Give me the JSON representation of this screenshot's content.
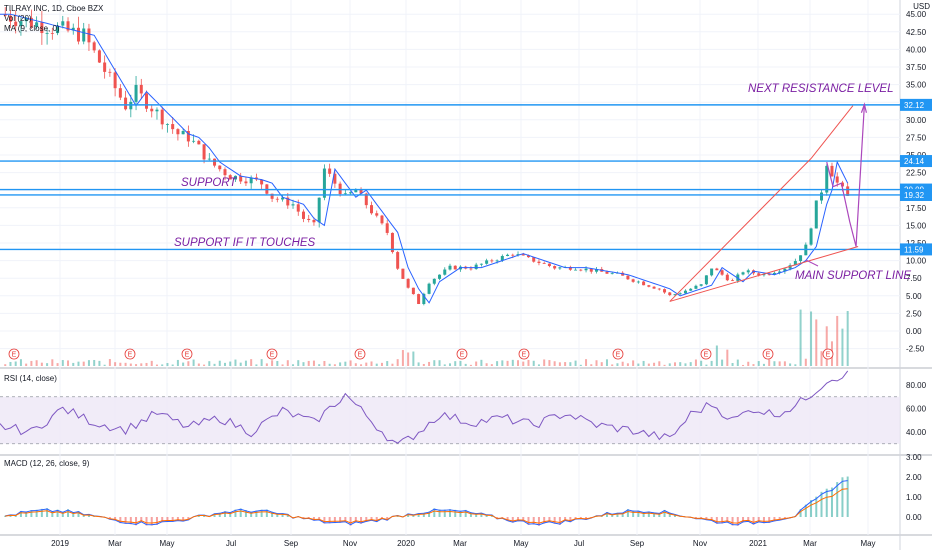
{
  "header": {
    "symbol": "TILRAY INC, 1D, Cboe BZX",
    "indicator_vol": "Vol (20)",
    "indicator_ma": "MA (9, close, 0)",
    "indicator_rsi": "RSI (14, close)",
    "indicator_macd": "MACD (12, 26, close, 9)",
    "currency": "USD"
  },
  "chart_data": {
    "type": "line",
    "price_axis": {
      "ticks": [
        "45.00",
        "42.50",
        "40.00",
        "37.50",
        "35.00",
        "32.50",
        "30.00",
        "27.50",
        "25.00",
        "22.50",
        "20.00",
        "17.50",
        "15.00",
        "12.50",
        "10.00",
        "7.50",
        "5.00",
        "2.50",
        "0.00",
        "-2.50"
      ],
      "range": [
        -2.5,
        45
      ]
    },
    "time_axis": {
      "labels": [
        "2019",
        "Mar",
        "May",
        "Jul",
        "Sep",
        "Nov",
        "2020",
        "Mar",
        "May",
        "Jul",
        "Sep",
        "Nov",
        "2021",
        "Mar",
        "May"
      ]
    },
    "price_series": [
      [
        0,
        45
      ],
      [
        8,
        42
      ],
      [
        10,
        37
      ],
      [
        12,
        32
      ],
      [
        13,
        34
      ],
      [
        15,
        31
      ],
      [
        17,
        28
      ],
      [
        18,
        27.5
      ],
      [
        19,
        26
      ],
      [
        20,
        24
      ],
      [
        22,
        22
      ],
      [
        24,
        21.5
      ],
      [
        25,
        21
      ],
      [
        26,
        19
      ],
      [
        27,
        18.5
      ],
      [
        28,
        18
      ],
      [
        29,
        16
      ],
      [
        30,
        15
      ],
      [
        31,
        23
      ],
      [
        32,
        21
      ],
      [
        33,
        19
      ],
      [
        34,
        20
      ],
      [
        35,
        18
      ],
      [
        36,
        16
      ],
      [
        37,
        14
      ],
      [
        38,
        9
      ],
      [
        39,
        6
      ],
      [
        40,
        4
      ],
      [
        41,
        7
      ],
      [
        42,
        8
      ],
      [
        43,
        9
      ],
      [
        45,
        9
      ],
      [
        47,
        10
      ],
      [
        49,
        11
      ],
      [
        51,
        10
      ],
      [
        53,
        9
      ],
      [
        55,
        9
      ],
      [
        57,
        8.5
      ],
      [
        59,
        8
      ],
      [
        61,
        7
      ],
      [
        63,
        6
      ],
      [
        64,
        5
      ],
      [
        65,
        5.5
      ],
      [
        67,
        6.5
      ],
      [
        68,
        9
      ],
      [
        69,
        8
      ],
      [
        70,
        7
      ],
      [
        71,
        8.5
      ],
      [
        73,
        8
      ],
      [
        75,
        9
      ],
      [
        76,
        10
      ],
      [
        77,
        12
      ],
      [
        78,
        18
      ],
      [
        78.5,
        20
      ],
      [
        79,
        24
      ],
      [
        80,
        21
      ],
      [
        81,
        19
      ]
    ],
    "rsi_axis": {
      "ticks": [
        "80.00",
        "60.00",
        "40.00"
      ],
      "range": [
        20,
        90
      ],
      "band": [
        30,
        70
      ]
    },
    "rsi_series": [
      [
        0,
        45
      ],
      [
        3,
        40
      ],
      [
        6,
        60
      ],
      [
        9,
        48
      ],
      [
        12,
        42
      ],
      [
        15,
        56
      ],
      [
        18,
        44
      ],
      [
        21,
        52
      ],
      [
        24,
        40
      ],
      [
        27,
        58
      ],
      [
        30,
        48
      ],
      [
        33,
        72
      ],
      [
        36,
        45
      ],
      [
        38,
        28
      ],
      [
        40,
        40
      ],
      [
        42,
        55
      ],
      [
        45,
        48
      ],
      [
        48,
        52
      ],
      [
        51,
        46
      ],
      [
        54,
        56
      ],
      [
        57,
        46
      ],
      [
        60,
        42
      ],
      [
        62,
        38
      ],
      [
        64,
        34
      ],
      [
        66,
        55
      ],
      [
        68,
        64
      ],
      [
        70,
        50
      ],
      [
        72,
        60
      ],
      [
        74,
        55
      ],
      [
        76,
        62
      ],
      [
        78,
        76
      ],
      [
        79,
        84
      ],
      [
        81,
        90
      ]
    ],
    "macd_axis": {
      "ticks": [
        "3.00",
        "2.00",
        "1.00",
        "0.00"
      ],
      "range": [
        -1.2,
        3
      ]
    },
    "annotations": {
      "next_resistance": "NEXT RESISTANCE LEVEL",
      "support": "SUPPORT",
      "support_if_touches": "SUPPORT IF IT TOUCHES",
      "main_support": "MAIN SUPPORT LINE"
    },
    "levels": [
      {
        "label": "32.12",
        "value": 32.12,
        "color": "#2196f3"
      },
      {
        "label": "24.14",
        "value": 24.14,
        "color": "#2196f3"
      },
      {
        "label": "20.09",
        "value": 20.09,
        "color": "#2196f3"
      },
      {
        "label": "19.32",
        "value": 19.32,
        "color": "#2196f3"
      },
      {
        "label": "11.59",
        "value": 11.59,
        "color": "#2196f3"
      }
    ],
    "earnings_marker": "E",
    "colors": {
      "up": "#26a69a",
      "down": "#ef5350",
      "ma": "#2962ff",
      "level": "#2196f3",
      "annot": "#7b1fa2",
      "rsi": "#7e57c2"
    }
  }
}
